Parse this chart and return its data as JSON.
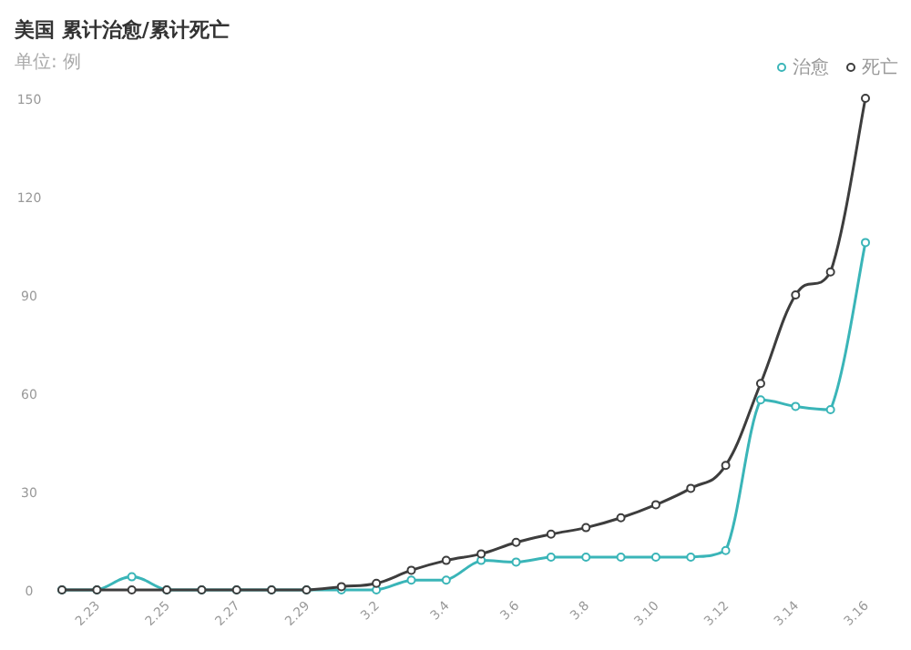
{
  "chart_data": {
    "type": "line",
    "title": "美国 累计治愈/累计死亡",
    "subtitle": "单位: 例",
    "categories": [
      null,
      "2.23",
      null,
      "2.25",
      null,
      "2.27",
      null,
      "2.29",
      null,
      "3.2",
      null,
      "3.4",
      null,
      "3.6",
      null,
      "3.8",
      null,
      "3.10",
      null,
      "3.12",
      null,
      "3.14",
      null,
      "3.16"
    ],
    "series": [
      {
        "name": "治愈",
        "color": "#3ab5b8",
        "values": [
          0,
          0,
          4,
          0,
          0,
          0,
          0,
          0,
          0,
          0,
          3,
          3,
          9,
          8.5,
          10,
          10,
          10,
          10,
          10,
          12,
          58,
          56,
          55,
          106
        ]
      },
      {
        "name": "死亡",
        "color": "#3d3d3d",
        "values": [
          0,
          0,
          0,
          0,
          0,
          0,
          0,
          0,
          1,
          2,
          6,
          9,
          11,
          14.5,
          17,
          19,
          22,
          26,
          31,
          38,
          63,
          90,
          97,
          150
        ]
      }
    ],
    "ylim": [
      0,
      150
    ],
    "yticks": [
      0,
      30,
      60,
      90,
      120,
      150
    ],
    "legend": "top right",
    "marker": "circle",
    "grid": false
  }
}
